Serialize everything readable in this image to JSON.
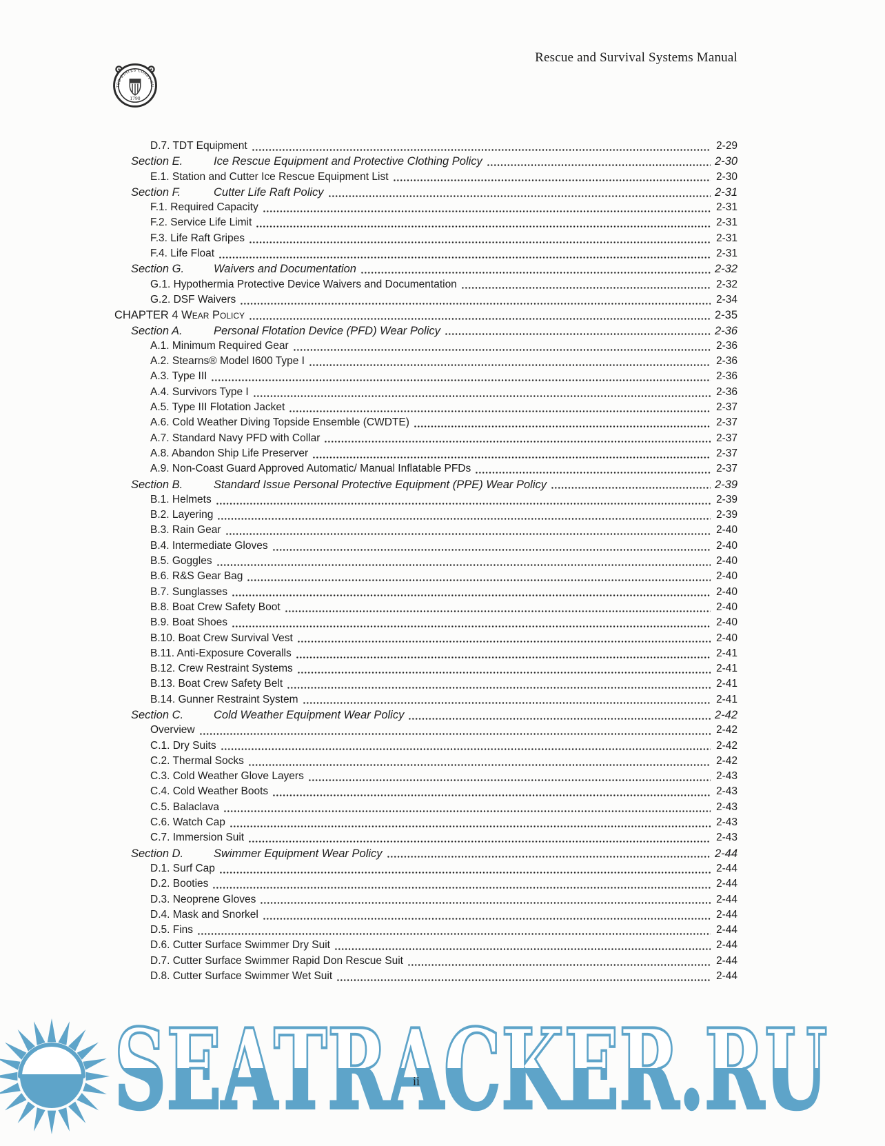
{
  "header": {
    "manual_title": "Rescue and Survival Systems Manual"
  },
  "emblem": {
    "ring_text": "UNITED STATES COAST GUARD",
    "year": "1790"
  },
  "toc": {
    "entries": [
      {
        "level": "entry",
        "title": "D.7. TDT Equipment",
        "page": "2-29"
      },
      {
        "level": "section",
        "label": "Section E.",
        "title": "Ice Rescue Equipment and Protective Clothing Policy",
        "page": "2-30"
      },
      {
        "level": "entry",
        "title": "E.1. Station and Cutter Ice Rescue Equipment List",
        "page": "2-30"
      },
      {
        "level": "section",
        "label": "Section F.",
        "title": "Cutter Life Raft Policy",
        "page": "2-31"
      },
      {
        "level": "entry",
        "title": "F.1. Required Capacity",
        "page": "2-31"
      },
      {
        "level": "entry",
        "title": "F.2. Service Life Limit",
        "page": "2-31"
      },
      {
        "level": "entry",
        "title": "F.3. Life Raft Gripes",
        "page": "2-31"
      },
      {
        "level": "entry",
        "title": "F.4. Life Float",
        "page": "2-31"
      },
      {
        "level": "section",
        "label": "Section G.",
        "title": "Waivers and Documentation",
        "page": "2-32"
      },
      {
        "level": "entry",
        "title": "G.1. Hypothermia Protective Device Waivers and Documentation",
        "page": "2-32"
      },
      {
        "level": "entry",
        "title": "G.2. DSF Waivers",
        "page": "2-34"
      },
      {
        "level": "chapter",
        "title": "CHAPTER 4 Wear Policy",
        "page": "2-35"
      },
      {
        "level": "section",
        "label": "Section A.",
        "title": "Personal Flotation Device (PFD) Wear Policy",
        "page": "2-36"
      },
      {
        "level": "entry",
        "title": "A.1. Minimum Required Gear",
        "page": "2-36"
      },
      {
        "level": "entry",
        "title": "A.2. Stearns® Model I600 Type I",
        "page": "2-36"
      },
      {
        "level": "entry",
        "title": "A.3. Type III",
        "page": "2-36"
      },
      {
        "level": "entry",
        "title": "A.4. Survivors Type I",
        "page": "2-36"
      },
      {
        "level": "entry",
        "title": "A.5. Type III Flotation Jacket",
        "page": "2-37"
      },
      {
        "level": "entry",
        "title": "A.6. Cold Weather Diving Topside Ensemble (CWDTE)",
        "page": "2-37"
      },
      {
        "level": "entry",
        "title": "A.7. Standard Navy PFD with Collar",
        "page": "2-37"
      },
      {
        "level": "entry",
        "title": "A.8. Abandon Ship Life Preserver",
        "page": "2-37"
      },
      {
        "level": "entry",
        "title": "A.9. Non-Coast Guard Approved Automatic/ Manual Inflatable PFDs",
        "page": "2-37"
      },
      {
        "level": "section",
        "label": "Section B.",
        "title": "Standard Issue Personal Protective Equipment (PPE) Wear Policy",
        "page": "2-39"
      },
      {
        "level": "entry",
        "title": "B.1. Helmets",
        "page": "2-39"
      },
      {
        "level": "entry",
        "title": "B.2. Layering",
        "page": "2-39"
      },
      {
        "level": "entry",
        "title": "B.3. Rain Gear",
        "page": "2-40"
      },
      {
        "level": "entry",
        "title": "B.4. Intermediate Gloves",
        "page": "2-40"
      },
      {
        "level": "entry",
        "title": "B.5. Goggles",
        "page": "2-40"
      },
      {
        "level": "entry",
        "title": "B.6. R&S Gear Bag",
        "page": "2-40"
      },
      {
        "level": "entry",
        "title": "B.7. Sunglasses",
        "page": "2-40"
      },
      {
        "level": "entry",
        "title": "B.8. Boat Crew Safety Boot",
        "page": "2-40"
      },
      {
        "level": "entry",
        "title": "B.9. Boat Shoes",
        "page": "2-40"
      },
      {
        "level": "entry",
        "title": "B.10. Boat Crew Survival Vest",
        "page": "2-40"
      },
      {
        "level": "entry",
        "title": "B.11. Anti-Exposure Coveralls",
        "page": "2-41"
      },
      {
        "level": "entry",
        "title": "B.12. Crew Restraint Systems",
        "page": "2-41"
      },
      {
        "level": "entry",
        "title": "B.13. Boat Crew Safety Belt",
        "page": "2-41"
      },
      {
        "level": "entry",
        "title": "B.14. Gunner Restraint System",
        "page": "2-41"
      },
      {
        "level": "section",
        "label": "Section C.",
        "title": "Cold Weather Equipment Wear Policy",
        "page": "2-42"
      },
      {
        "level": "entry",
        "title": "Overview",
        "page": "2-42"
      },
      {
        "level": "entry",
        "title": "C.1. Dry Suits",
        "page": "2-42"
      },
      {
        "level": "entry",
        "title": "C.2. Thermal Socks",
        "page": "2-42"
      },
      {
        "level": "entry",
        "title": "C.3. Cold Weather Glove Layers",
        "page": "2-43"
      },
      {
        "level": "entry",
        "title": "C.4. Cold Weather Boots",
        "page": "2-43"
      },
      {
        "level": "entry",
        "title": "C.5. Balaclava",
        "page": "2-43"
      },
      {
        "level": "entry",
        "title": "C.6. Watch Cap",
        "page": "2-43"
      },
      {
        "level": "entry",
        "title": "C.7. Immersion Suit",
        "page": "2-43"
      },
      {
        "level": "section",
        "label": "Section D.",
        "title": "Swimmer Equipment Wear Policy",
        "page": "2-44"
      },
      {
        "level": "entry",
        "title": "D.1. Surf Cap",
        "page": "2-44"
      },
      {
        "level": "entry",
        "title": "D.2. Booties",
        "page": "2-44"
      },
      {
        "level": "entry",
        "title": "D.3. Neoprene Gloves",
        "page": "2-44"
      },
      {
        "level": "entry",
        "title": "D.4. Mask and Snorkel",
        "page": "2-44"
      },
      {
        "level": "entry",
        "title": "D.5. Fins",
        "page": "2-44"
      },
      {
        "level": "entry",
        "title": "D.6. Cutter Surface Swimmer Dry Suit",
        "page": "2-44"
      },
      {
        "level": "entry",
        "title": "D.7. Cutter Surface Swimmer Rapid Don Rescue Suit",
        "page": "2-44"
      },
      {
        "level": "entry",
        "title": "D.8. Cutter Surface Swimmer Wet Suit",
        "page": "2-44"
      }
    ]
  },
  "watermark": {
    "text": "SEATRACKER.RU",
    "color": "#5ea4c9",
    "icon": "sun-icon"
  },
  "footer": {
    "page_number": "ii"
  }
}
